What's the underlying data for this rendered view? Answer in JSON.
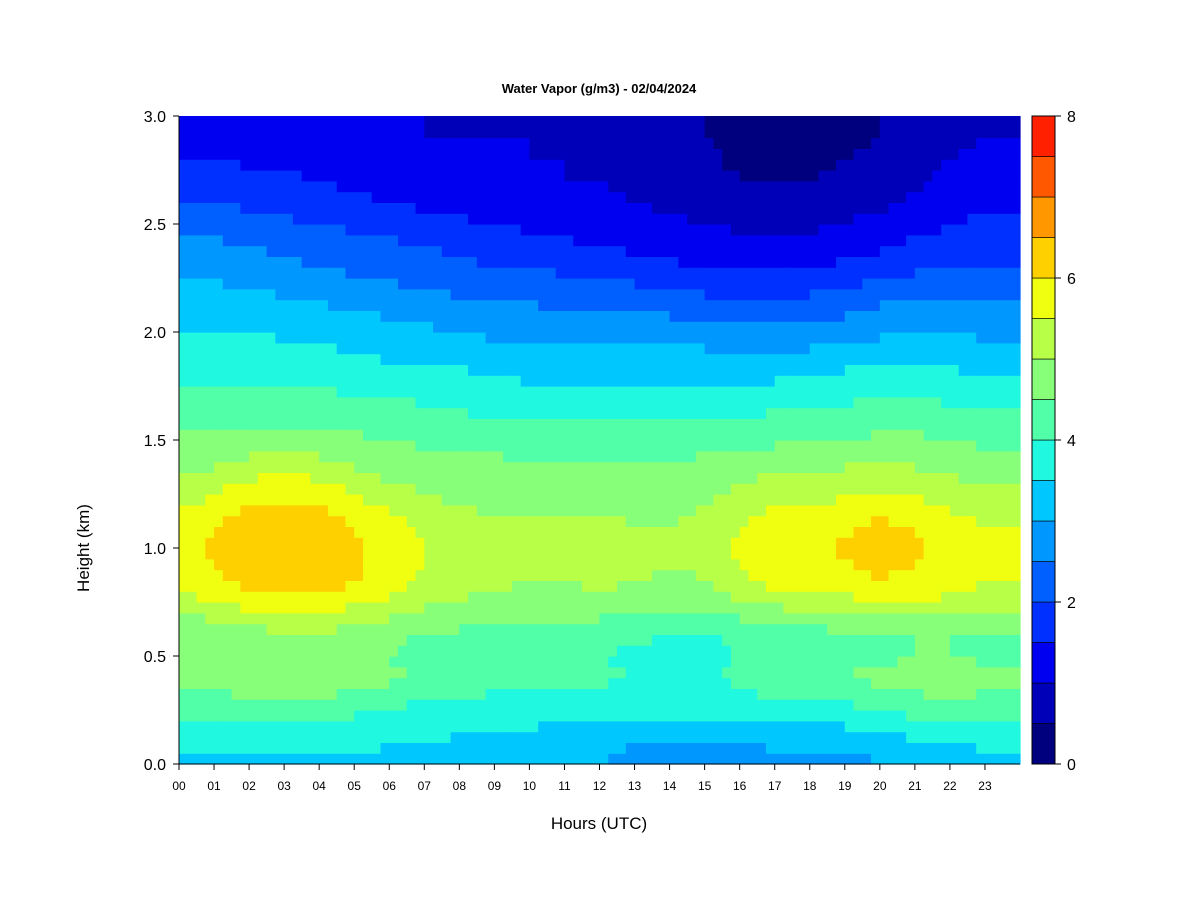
{
  "chart_data": {
    "type": "heatmap",
    "title": "Water Vapor (g/m3) - 02/04/2024",
    "xlabel": "Hours (UTC)",
    "ylabel": "Height (km)",
    "xlim": [
      0,
      24
    ],
    "ylim": [
      0,
      3
    ],
    "x_tick_labels": [
      "00",
      "01",
      "02",
      "03",
      "04",
      "05",
      "06",
      "07",
      "08",
      "09",
      "10",
      "11",
      "12",
      "13",
      "14",
      "15",
      "16",
      "17",
      "18",
      "19",
      "20",
      "21",
      "22",
      "23"
    ],
    "y_tick_labels": [
      "0.0",
      "0.5",
      "1.0",
      "1.5",
      "2.0",
      "2.5",
      "3.0"
    ],
    "colorbar": {
      "range": [
        0,
        8
      ],
      "step": 0.5,
      "tick_labels": [
        "0",
        "2",
        "4",
        "6",
        "8"
      ],
      "colors": [
        "#00007F",
        "#0000B8",
        "#0000F0",
        "#0030FF",
        "#0060FF",
        "#0098FF",
        "#00C8FF",
        "#20F8E0",
        "#50FFA8",
        "#88FF78",
        "#B8FF48",
        "#F0FF10",
        "#FFD000",
        "#FF9800",
        "#FF5800",
        "#FF2000",
        "#D00000",
        "#900000"
      ]
    },
    "x": [
      0,
      1,
      2,
      3,
      4,
      5,
      6,
      7,
      8,
      9,
      10,
      11,
      12,
      13,
      14,
      15,
      16,
      17,
      18,
      19,
      20,
      21,
      22,
      23,
      24
    ],
    "y": [
      0.0,
      0.1,
      0.2,
      0.3,
      0.4,
      0.5,
      0.6,
      0.7,
      0.8,
      0.9,
      1.0,
      1.1,
      1.2,
      1.3,
      1.4,
      1.5,
      1.6,
      1.7,
      1.8,
      1.9,
      2.0,
      2.1,
      2.2,
      2.3,
      2.4,
      2.5,
      2.6,
      2.7,
      2.8,
      2.9,
      3.0
    ],
    "z": [
      [
        3.4,
        3.4,
        3.4,
        3.4,
        3.4,
        3.4,
        3.4,
        3.3,
        3.2,
        3.2,
        3.1,
        3.1,
        3.0,
        2.8,
        2.8,
        2.8,
        2.8,
        2.8,
        2.9,
        2.8,
        3.0,
        3.1,
        3.2,
        3.3,
        3.3
      ],
      [
        3.6,
        3.6,
        3.6,
        3.6,
        3.6,
        3.6,
        3.5,
        3.5,
        3.4,
        3.4,
        3.3,
        3.3,
        3.2,
        3.0,
        3.0,
        3.0,
        3.0,
        3.1,
        3.1,
        3.1,
        3.3,
        3.4,
        3.5,
        3.6,
        3.6
      ],
      [
        3.9,
        3.9,
        3.9,
        3.9,
        3.9,
        3.9,
        3.8,
        3.7,
        3.7,
        3.6,
        3.6,
        3.5,
        3.5,
        3.4,
        3.4,
        3.4,
        3.4,
        3.5,
        3.6,
        3.6,
        3.8,
        3.9,
        4.0,
        4.0,
        4.0
      ],
      [
        4.3,
        4.3,
        4.4,
        4.4,
        4.4,
        4.3,
        4.2,
        4.0,
        4.0,
        3.9,
        3.9,
        3.8,
        3.8,
        3.8,
        3.8,
        3.8,
        3.9,
        4.0,
        4.1,
        4.1,
        4.3,
        4.4,
        4.5,
        4.4,
        4.4
      ],
      [
        4.8,
        4.8,
        5.0,
        5.0,
        5.0,
        4.8,
        4.6,
        4.4,
        4.2,
        4.2,
        4.2,
        4.1,
        4.1,
        4.0,
        3.9,
        3.9,
        4.1,
        4.3,
        4.4,
        4.5,
        4.6,
        4.7,
        4.8,
        4.7,
        4.6
      ],
      [
        4.6,
        4.6,
        4.8,
        4.9,
        4.9,
        4.7,
        4.5,
        4.3,
        4.2,
        4.2,
        4.1,
        4.1,
        4.0,
        3.9,
        3.8,
        3.8,
        4.0,
        4.2,
        4.3,
        4.4,
        4.4,
        4.5,
        4.5,
        4.4,
        4.3
      ],
      [
        4.5,
        4.6,
        4.8,
        4.9,
        4.9,
        4.8,
        4.6,
        4.5,
        4.4,
        4.3,
        4.3,
        4.2,
        4.2,
        4.1,
        4.0,
        4.0,
        4.1,
        4.3,
        4.3,
        4.4,
        4.5,
        4.5,
        4.5,
        4.4,
        4.4
      ],
      [
        5.0,
        5.2,
        5.4,
        5.5,
        5.5,
        5.3,
        5.1,
        4.9,
        4.8,
        4.7,
        4.6,
        4.6,
        4.6,
        4.5,
        4.4,
        4.4,
        4.6,
        4.8,
        4.9,
        5.0,
        5.1,
        5.1,
        5.0,
        4.9,
        4.9
      ],
      [
        5.5,
        5.8,
        6.0,
        6.1,
        6.1,
        5.9,
        5.6,
        5.3,
        5.1,
        5.0,
        4.9,
        4.9,
        5.0,
        4.9,
        4.8,
        4.8,
        5.2,
        5.5,
        5.5,
        5.6,
        5.8,
        5.8,
        5.6,
        5.4,
        5.4
      ],
      [
        5.8,
        6.0,
        6.3,
        6.4,
        6.3,
        6.1,
        5.8,
        5.5,
        5.3,
        5.2,
        5.1,
        5.1,
        5.2,
        5.1,
        5.0,
        5.1,
        5.5,
        5.8,
        5.8,
        5.9,
        6.1,
        6.0,
        5.8,
        5.6,
        5.6
      ],
      [
        5.8,
        6.1,
        6.4,
        6.5,
        6.4,
        6.1,
        5.8,
        5.5,
        5.3,
        5.2,
        5.1,
        5.1,
        5.2,
        5.1,
        5.1,
        5.2,
        5.6,
        5.9,
        5.9,
        6.1,
        6.2,
        6.1,
        5.8,
        5.6,
        5.6
      ],
      [
        5.7,
        6.0,
        6.3,
        6.4,
        6.3,
        6.0,
        5.7,
        5.4,
        5.2,
        5.1,
        5.1,
        5.1,
        5.1,
        5.0,
        5.0,
        5.1,
        5.5,
        5.8,
        5.8,
        5.9,
        6.1,
        6.0,
        5.7,
        5.5,
        5.5
      ],
      [
        5.4,
        5.7,
        6.0,
        6.1,
        6.0,
        5.7,
        5.4,
        5.1,
        5.0,
        4.9,
        4.9,
        4.9,
        4.9,
        4.9,
        4.9,
        5.0,
        5.3,
        5.5,
        5.5,
        5.6,
        5.8,
        5.7,
        5.4,
        5.2,
        5.2
      ],
      [
        5.1,
        5.3,
        5.6,
        5.7,
        5.6,
        5.3,
        5.0,
        4.9,
        4.8,
        4.8,
        4.7,
        4.7,
        4.7,
        4.7,
        4.7,
        4.8,
        5.0,
        5.2,
        5.2,
        5.3,
        5.4,
        5.3,
        5.1,
        5.0,
        5.0
      ],
      [
        4.8,
        4.9,
        5.1,
        5.2,
        5.1,
        4.9,
        4.8,
        4.7,
        4.6,
        4.6,
        4.5,
        4.5,
        4.5,
        4.5,
        4.5,
        4.6,
        4.7,
        4.8,
        4.8,
        4.9,
        5.0,
        4.9,
        4.8,
        4.7,
        4.7
      ],
      [
        4.6,
        4.6,
        4.7,
        4.7,
        4.7,
        4.6,
        4.5,
        4.4,
        4.4,
        4.3,
        4.3,
        4.3,
        4.3,
        4.3,
        4.3,
        4.3,
        4.4,
        4.4,
        4.5,
        4.5,
        4.6,
        4.6,
        4.5,
        4.4,
        4.4
      ],
      [
        4.3,
        4.3,
        4.4,
        4.4,
        4.4,
        4.3,
        4.2,
        4.2,
        4.1,
        4.0,
        4.0,
        4.0,
        4.0,
        4.0,
        4.0,
        4.0,
        4.0,
        4.1,
        4.1,
        4.2,
        4.3,
        4.3,
        4.2,
        4.1,
        4.1
      ],
      [
        4.1,
        4.1,
        4.2,
        4.2,
        4.1,
        4.0,
        4.0,
        3.9,
        3.8,
        3.8,
        3.7,
        3.7,
        3.7,
        3.7,
        3.7,
        3.7,
        3.7,
        3.8,
        3.8,
        3.9,
        4.0,
        4.0,
        3.9,
        3.8,
        3.8
      ],
      [
        3.9,
        3.9,
        3.9,
        3.9,
        3.9,
        3.8,
        3.7,
        3.6,
        3.6,
        3.5,
        3.4,
        3.4,
        3.4,
        3.4,
        3.4,
        3.4,
        3.4,
        3.4,
        3.5,
        3.6,
        3.7,
        3.7,
        3.6,
        3.5,
        3.5
      ],
      [
        3.7,
        3.7,
        3.7,
        3.7,
        3.6,
        3.5,
        3.4,
        3.4,
        3.3,
        3.2,
        3.1,
        3.1,
        3.1,
        3.1,
        3.1,
        3.1,
        3.0,
        3.0,
        3.1,
        3.2,
        3.3,
        3.4,
        3.3,
        3.2,
        3.2
      ],
      [
        3.5,
        3.5,
        3.5,
        3.4,
        3.4,
        3.3,
        3.2,
        3.1,
        3.0,
        2.9,
        2.9,
        2.8,
        2.8,
        2.8,
        2.8,
        2.7,
        2.6,
        2.6,
        2.7,
        2.8,
        2.9,
        3.0,
        3.0,
        2.9,
        2.9
      ],
      [
        3.3,
        3.3,
        3.3,
        3.2,
        3.1,
        3.0,
        2.9,
        2.8,
        2.7,
        2.6,
        2.6,
        2.5,
        2.5,
        2.5,
        2.4,
        2.3,
        2.2,
        2.2,
        2.3,
        2.4,
        2.6,
        2.7,
        2.7,
        2.6,
        2.6
      ],
      [
        3.1,
        3.1,
        3.0,
        2.9,
        2.8,
        2.7,
        2.6,
        2.5,
        2.4,
        2.3,
        2.3,
        2.2,
        2.2,
        2.1,
        2.0,
        1.9,
        1.9,
        1.9,
        1.9,
        2.0,
        2.2,
        2.3,
        2.4,
        2.3,
        2.3
      ],
      [
        2.8,
        2.8,
        2.8,
        2.6,
        2.5,
        2.4,
        2.3,
        2.2,
        2.1,
        2.0,
        2.0,
        1.9,
        1.8,
        1.7,
        1.6,
        1.5,
        1.5,
        1.5,
        1.5,
        1.6,
        1.8,
        1.9,
        2.0,
        2.0,
        2.0
      ],
      [
        2.6,
        2.6,
        2.5,
        2.4,
        2.3,
        2.2,
        2.1,
        2.0,
        1.9,
        1.8,
        1.7,
        1.6,
        1.5,
        1.4,
        1.3,
        1.2,
        1.2,
        1.2,
        1.2,
        1.3,
        1.4,
        1.6,
        1.7,
        1.8,
        1.8
      ],
      [
        2.3,
        2.3,
        2.2,
        2.1,
        2.0,
        1.9,
        1.8,
        1.7,
        1.6,
        1.5,
        1.4,
        1.3,
        1.3,
        1.2,
        1.1,
        1.0,
        0.9,
        0.9,
        0.9,
        1.0,
        1.2,
        1.3,
        1.5,
        1.6,
        1.6
      ],
      [
        2.0,
        2.0,
        1.9,
        1.8,
        1.7,
        1.6,
        1.5,
        1.4,
        1.3,
        1.2,
        1.2,
        1.1,
        1.1,
        1.0,
        0.9,
        0.8,
        0.7,
        0.7,
        0.7,
        0.8,
        0.9,
        1.1,
        1.3,
        1.4,
        1.4
      ],
      [
        1.8,
        1.8,
        1.7,
        1.6,
        1.5,
        1.4,
        1.3,
        1.3,
        1.2,
        1.1,
        1.1,
        1.0,
        1.0,
        0.9,
        0.8,
        0.7,
        0.5,
        0.5,
        0.5,
        0.6,
        0.7,
        0.9,
        1.1,
        1.2,
        1.2
      ],
      [
        1.5,
        1.5,
        1.4,
        1.4,
        1.3,
        1.2,
        1.2,
        1.1,
        1.1,
        1.0,
        1.0,
        1.0,
        0.9,
        0.8,
        0.7,
        0.6,
        0.4,
        0.4,
        0.4,
        0.5,
        0.6,
        0.8,
        1.0,
        1.1,
        1.1
      ],
      [
        1.3,
        1.3,
        1.3,
        1.2,
        1.2,
        1.1,
        1.1,
        1.0,
        1.0,
        1.0,
        1.0,
        0.9,
        0.9,
        0.7,
        0.6,
        0.5,
        0.4,
        0.4,
        0.4,
        0.4,
        0.5,
        0.7,
        0.9,
        1.0,
        1.0
      ],
      [
        1.2,
        1.2,
        1.1,
        1.1,
        1.1,
        1.0,
        1.0,
        1.0,
        0.9,
        0.9,
        0.9,
        0.9,
        0.8,
        0.7,
        0.6,
        0.5,
        0.4,
        0.4,
        0.4,
        0.4,
        0.5,
        0.6,
        0.8,
        0.9,
        0.9
      ]
    ]
  }
}
